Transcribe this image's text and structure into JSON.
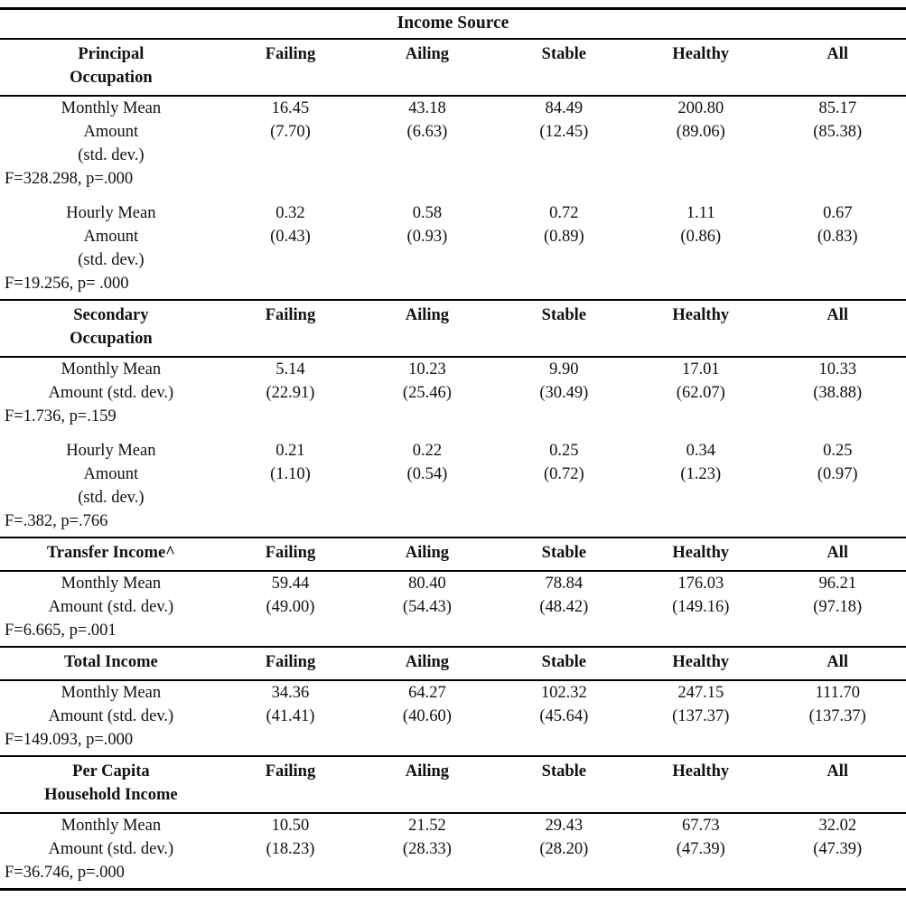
{
  "table": {
    "title": "Income Source",
    "column_headers": [
      "Failing",
      "Ailing",
      "Stable",
      "Healthy",
      "All"
    ],
    "sections": [
      {
        "header_lines": [
          "Principal",
          "Occupation"
        ],
        "blocks": [
          {
            "label_lines": [
              "Monthly Mean",
              "Amount",
              "(std. dev.)"
            ],
            "means": [
              "16.45",
              "43.18",
              "84.49",
              "200.80",
              "85.17"
            ],
            "std_devs": [
              "(7.70)",
              "(6.63)",
              "(12.45)",
              "(89.06)",
              "(85.38)"
            ],
            "stat": "F=328.298, p=.000"
          },
          {
            "label_lines": [
              "Hourly Mean",
              "Amount",
              "(std. dev.)"
            ],
            "means": [
              "0.32",
              "0.58",
              "0.72",
              "1.11",
              "0.67"
            ],
            "std_devs": [
              "(0.43)",
              "(0.93)",
              "(0.89)",
              "(0.86)",
              "(0.83)"
            ],
            "stat": "F=19.256, p= .000"
          }
        ]
      },
      {
        "header_lines": [
          "Secondary",
          "Occupation"
        ],
        "blocks": [
          {
            "label_lines": [
              "Monthly Mean",
              "Amount (std. dev.)"
            ],
            "means": [
              "5.14",
              "10.23",
              "9.90",
              "17.01",
              "10.33"
            ],
            "std_devs": [
              "(22.91)",
              "(25.46)",
              "(30.49)",
              "(62.07)",
              "(38.88)"
            ],
            "stat": "F=1.736, p=.159"
          },
          {
            "label_lines": [
              "Hourly Mean",
              "Amount",
              "(std. dev.)"
            ],
            "means": [
              "0.21",
              "0.22",
              "0.25",
              "0.34",
              "0.25"
            ],
            "std_devs": [
              "(1.10)",
              "(0.54)",
              "(0.72)",
              "(1.23)",
              "(0.97)"
            ],
            "stat": "F=.382, p=.766"
          }
        ]
      },
      {
        "header_lines": [
          "Transfer Income^"
        ],
        "blocks": [
          {
            "label_lines": [
              "Monthly Mean",
              "Amount (std. dev.)"
            ],
            "means": [
              "59.44",
              "80.40",
              "78.84",
              "176.03",
              "96.21"
            ],
            "std_devs": [
              "(49.00)",
              "(54.43)",
              "(48.42)",
              "(149.16)",
              "(97.18)"
            ],
            "stat": "F=6.665, p=.001"
          }
        ]
      },
      {
        "header_lines": [
          "Total Income"
        ],
        "blocks": [
          {
            "label_lines": [
              "Monthly Mean",
              "Amount (std. dev.)"
            ],
            "means": [
              "34.36",
              "64.27",
              "102.32",
              "247.15",
              "111.70"
            ],
            "std_devs": [
              "(41.41)",
              "(40.60)",
              "(45.64)",
              "(137.37)",
              "(137.37)"
            ],
            "stat": "F=149.093, p=.000"
          }
        ]
      },
      {
        "header_lines": [
          "Per Capita",
          "Household Income"
        ],
        "blocks": [
          {
            "label_lines": [
              "Monthly Mean",
              "Amount (std. dev.)"
            ],
            "means": [
              "10.50",
              "21.52",
              "29.43",
              "67.73",
              "32.02"
            ],
            "std_devs": [
              "(18.23)",
              "(28.33)",
              "(28.20)",
              "(47.39)",
              "(47.39)"
            ],
            "stat": "F=36.746, p=.000"
          }
        ]
      }
    ],
    "colors": {
      "text": "#111111",
      "rule": "#000000",
      "background": "#ffffff"
    }
  }
}
